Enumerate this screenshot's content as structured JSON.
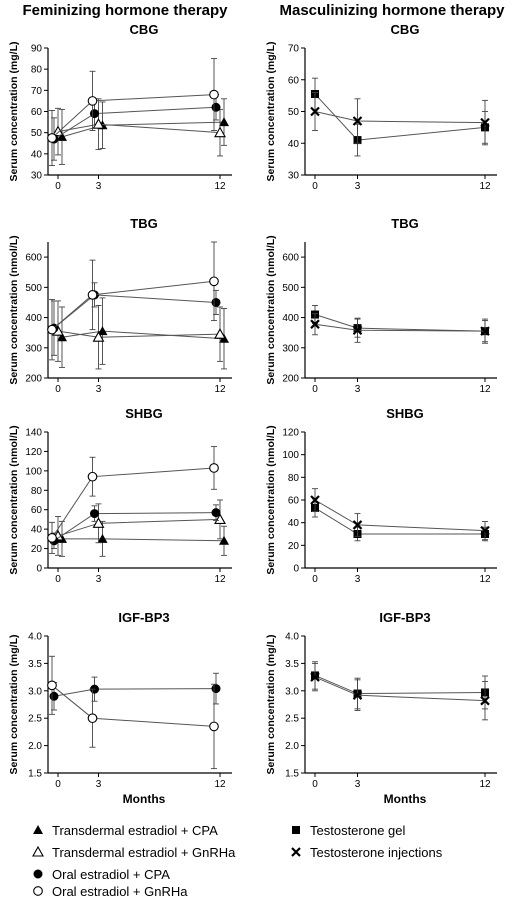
{
  "headings": {
    "left": "Feminizing hormone therapy",
    "right": "Masculinizing hormone therapy"
  },
  "x_axis_label": "Months",
  "legend": [
    {
      "marker": "filled-triangle",
      "label": "Transdermal estradiol + CPA"
    },
    {
      "marker": "open-triangle",
      "label": "Transdermal estradiol + GnRHa"
    },
    {
      "marker": "filled-circle",
      "label": "Oral estradiol + CPA"
    },
    {
      "marker": "open-circle",
      "label": "Oral estradiol + GnRHa"
    },
    {
      "marker": "filled-square",
      "label": "Testosterone gel"
    },
    {
      "marker": "cross",
      "label": "Testosterone injections"
    }
  ],
  "chart_data": [
    {
      "type": "line",
      "group": "Feminizing hormone therapy",
      "title": "CBG",
      "ylabel": "Serum concentration (mg/L)",
      "x": [
        0,
        3,
        12
      ],
      "xticks": [
        0,
        3,
        12
      ],
      "xlabel": "",
      "ylim": [
        30,
        90
      ],
      "yticks": [
        30,
        40,
        50,
        60,
        70,
        80,
        90
      ],
      "series": [
        {
          "marker": "filled-triangle",
          "values": [
            48,
            53.5,
            55
          ],
          "err": [
            13,
            11,
            11
          ]
        },
        {
          "marker": "open-triangle",
          "values": [
            50.5,
            54,
            50
          ],
          "err": [
            11,
            12,
            11
          ]
        },
        {
          "marker": "filled-circle",
          "values": [
            47,
            59,
            62
          ],
          "err": [
            10,
            7,
            6
          ]
        },
        {
          "marker": "open-circle",
          "values": [
            47.5,
            65,
            68
          ],
          "err": [
            13,
            14,
            17
          ]
        }
      ]
    },
    {
      "type": "line",
      "group": "Masculinizing hormone therapy",
      "title": "CBG",
      "ylabel": "Serum concentration (mg/L)",
      "x": [
        0,
        3,
        12
      ],
      "xticks": [
        0,
        3,
        12
      ],
      "xlabel": "",
      "ylim": [
        30,
        70
      ],
      "yticks": [
        30,
        40,
        50,
        60,
        70
      ],
      "series": [
        {
          "marker": "filled-square",
          "values": [
            55.5,
            41,
            45
          ],
          "err": [
            5,
            5,
            5
          ]
        },
        {
          "marker": "cross",
          "values": [
            50,
            47,
            46.5
          ],
          "err": [
            6,
            7,
            7
          ]
        }
      ]
    },
    {
      "type": "line",
      "group": "Feminizing hormone therapy",
      "title": "TBG",
      "ylabel": "Serum concentration (nmol/L)",
      "x": [
        0,
        3,
        12
      ],
      "xticks": [
        0,
        3,
        12
      ],
      "xlabel": "",
      "ylim": [
        200,
        650
      ],
      "yticks": [
        200,
        300,
        400,
        500,
        600
      ],
      "series": [
        {
          "marker": "filled-triangle",
          "values": [
            335,
            355,
            330
          ],
          "err": [
            100,
            110,
            100
          ]
        },
        {
          "marker": "open-triangle",
          "values": [
            355,
            335,
            345
          ],
          "err": [
            100,
            105,
            90
          ]
        },
        {
          "marker": "filled-circle",
          "values": [
            365,
            475,
            450
          ],
          "err": [
            90,
            40,
            40
          ]
        },
        {
          "marker": "open-circle",
          "values": [
            360,
            475,
            520
          ],
          "err": [
            100,
            115,
            130
          ]
        }
      ]
    },
    {
      "type": "line",
      "group": "Masculinizing hormone therapy",
      "title": "TBG",
      "ylabel": "Serum concentration (nmol/L)",
      "x": [
        0,
        3,
        12
      ],
      "xticks": [
        0,
        3,
        12
      ],
      "xlabel": "",
      "ylim": [
        200,
        650
      ],
      "yticks": [
        200,
        300,
        400,
        500,
        600
      ],
      "series": [
        {
          "marker": "filled-square",
          "values": [
            410,
            365,
            355
          ],
          "err": [
            30,
            30,
            40
          ]
        },
        {
          "marker": "cross",
          "values": [
            378,
            358,
            355
          ],
          "err": [
            35,
            40,
            35
          ]
        }
      ]
    },
    {
      "type": "line",
      "group": "Feminizing hormone therapy",
      "title": "SHBG",
      "ylabel": "Serum concentration (nmol/L)",
      "x": [
        0,
        3,
        12
      ],
      "xticks": [
        0,
        3,
        12
      ],
      "xlabel": "",
      "ylim": [
        0,
        140
      ],
      "yticks": [
        0,
        20,
        40,
        60,
        80,
        100,
        120,
        140
      ],
      "series": [
        {
          "marker": "filled-triangle",
          "values": [
            30,
            30,
            28
          ],
          "err": [
            18,
            18,
            15
          ]
        },
        {
          "marker": "open-triangle",
          "values": [
            33,
            46,
            50
          ],
          "err": [
            20,
            20,
            20
          ]
        },
        {
          "marker": "filled-circle",
          "values": [
            28,
            56,
            57
          ],
          "err": [
            8,
            8,
            8
          ]
        },
        {
          "marker": "open-circle",
          "values": [
            31,
            94,
            103
          ],
          "err": [
            16,
            20,
            22
          ]
        }
      ]
    },
    {
      "type": "line",
      "group": "Masculinizing hormone therapy",
      "title": "SHBG",
      "ylabel": "Serum concentration (nmol/L)",
      "x": [
        0,
        3,
        12
      ],
      "xticks": [
        0,
        3,
        12
      ],
      "xlabel": "",
      "ylim": [
        0,
        120
      ],
      "yticks": [
        0,
        20,
        40,
        60,
        80,
        100,
        120
      ],
      "series": [
        {
          "marker": "filled-square",
          "values": [
            53,
            30,
            30
          ],
          "err": [
            8,
            6,
            6
          ]
        },
        {
          "marker": "cross",
          "values": [
            60,
            38,
            33
          ],
          "err": [
            10,
            10,
            8
          ]
        }
      ]
    },
    {
      "type": "line",
      "group": "Feminizing hormone therapy",
      "title": "IGF-BP3",
      "ylabel": "Serum concentration (mg/L)",
      "x": [
        0,
        3,
        12
      ],
      "xticks": [
        0,
        3,
        12
      ],
      "xlabel": "Months",
      "ylim": [
        1.5,
        4.0
      ],
      "yticks": [
        1.5,
        2.0,
        2.5,
        3.0,
        3.5,
        4.0
      ],
      "series": [
        {
          "marker": "filled-circle",
          "values": [
            2.9,
            3.03,
            3.04
          ],
          "err": [
            0.25,
            0.22,
            0.28
          ]
        },
        {
          "marker": "open-circle",
          "values": [
            3.1,
            2.5,
            2.35
          ],
          "err": [
            0.53,
            0.53,
            0.77
          ]
        }
      ]
    },
    {
      "type": "line",
      "group": "Masculinizing hormone therapy",
      "title": "IGF-BP3",
      "ylabel": "Serum concentration (mg/L)",
      "x": [
        0,
        3,
        12
      ],
      "xticks": [
        0,
        3,
        12
      ],
      "xlabel": "Months",
      "ylim": [
        1.5,
        4.0
      ],
      "yticks": [
        1.5,
        2.0,
        2.5,
        3.0,
        3.5,
        4.0
      ],
      "series": [
        {
          "marker": "filled-square",
          "values": [
            3.28,
            2.95,
            2.97
          ],
          "err": [
            0.25,
            0.28,
            0.3
          ]
        },
        {
          "marker": "cross",
          "values": [
            3.25,
            2.92,
            2.82
          ],
          "err": [
            0.25,
            0.28,
            0.35
          ]
        }
      ]
    }
  ]
}
